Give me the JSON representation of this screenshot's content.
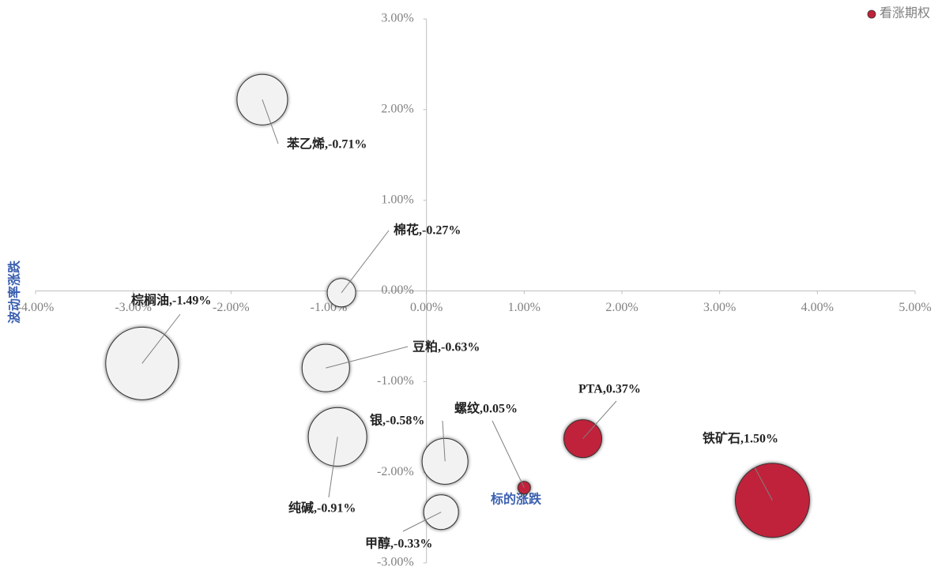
{
  "chart_data": {
    "type": "bubble",
    "x_label": "标的涨跌",
    "y_label": "波动率涨跌",
    "xlim": [
      -4,
      5
    ],
    "ylim": [
      -3,
      3
    ],
    "xticks": [
      {
        "value": -4,
        "label": "-4.00%"
      },
      {
        "value": -3,
        "label": "-3.00%"
      },
      {
        "value": -2,
        "label": "-2.00%"
      },
      {
        "value": -1,
        "label": "-1.00%"
      },
      {
        "value": 0,
        "label": "0.00%"
      },
      {
        "value": 1,
        "label": "1.00%"
      },
      {
        "value": 2,
        "label": "2.00%"
      },
      {
        "value": 3,
        "label": "3.00%"
      },
      {
        "value": 4,
        "label": "4.00%"
      },
      {
        "value": 5,
        "label": "5.00%"
      }
    ],
    "yticks": [
      {
        "value": -3,
        "label": "-3.00%"
      },
      {
        "value": -2,
        "label": "-2.00%"
      },
      {
        "value": -1,
        "label": "-1.00%"
      },
      {
        "value": 0,
        "label": "0.00%"
      },
      {
        "value": 1,
        "label": "1.00%"
      },
      {
        "value": 2,
        "label": "2.00%"
      },
      {
        "value": 3,
        "label": "3.00%"
      }
    ],
    "legend": "top-right",
    "series": [
      {
        "color": "#f2f2f2",
        "x": [
          -1.68,
          -0.87,
          -2.91,
          -1.03,
          -0.91,
          0.19,
          0.15
        ],
        "values": [
          2.11,
          -0.02,
          -0.8,
          -0.85,
          -1.61,
          -1.88,
          -2.44
        ],
        "sizes": [
          32,
          18,
          46,
          30,
          37,
          29,
          22
        ],
        "labels": [
          "苯乙烯,-0.71%",
          "棉花,-0.27%",
          "棕榈油,-1.49%",
          "豆粕,-0.63%",
          "纯碱,-0.91%",
          "银,-0.58%",
          "甲醇,-0.33%"
        ]
      },
      {
        "name": "看涨期权",
        "color": "#c0223a",
        "x": [
          1.0,
          1.6,
          3.54
        ],
        "values": [
          -2.17,
          -1.63,
          -2.31
        ],
        "sizes": [
          8,
          24,
          47
        ],
        "labels": [
          "螺纹,0.05%",
          "PTA,0.37%",
          "铁矿石,1.50%"
        ]
      }
    ]
  }
}
